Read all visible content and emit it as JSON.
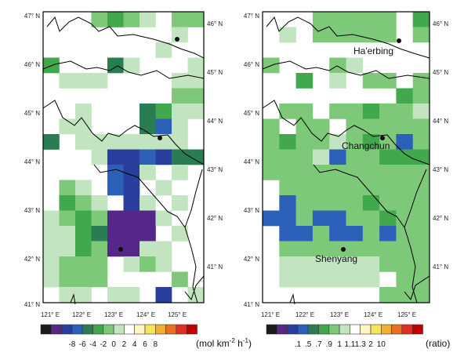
{
  "palette": [
    "#1a1a1a",
    "#542788",
    "#2a3f9d",
    "#2c5fb8",
    "#2a7d52",
    "#41a84e",
    "#7ec87a",
    "#c2e4c0",
    "#ffffff",
    "#fff7c0",
    "#f6e65a",
    "#f0b030",
    "#e87020",
    "#e03020",
    "#c00000"
  ],
  "left_map": {
    "lat_labels": [
      "47° N",
      "46° N",
      "45° N",
      "44° N",
      "43° N",
      "42° N",
      "41° N"
    ],
    "right_labels": [
      "46° N",
      "45° N",
      "44° N",
      "43° N",
      "42° N",
      "41° N"
    ],
    "lon_labels": [
      "121° E",
      "122° E",
      "123° E",
      "124° E",
      "125° E"
    ],
    "cells": [
      {
        "c": 3,
        "r": 0,
        "v": 6
      },
      {
        "c": 4,
        "r": 0,
        "v": 5
      },
      {
        "c": 5,
        "r": 0,
        "v": 6
      },
      {
        "c": 6,
        "r": 0,
        "v": 7
      },
      {
        "c": 8,
        "r": 0,
        "v": 6
      },
      {
        "c": 8,
        "r": 1,
        "v": 7
      },
      {
        "c": 9,
        "r": 0,
        "v": 6
      },
      {
        "c": 7,
        "r": 2,
        "v": 7
      },
      {
        "c": 0,
        "r": 3,
        "v": 5
      },
      {
        "c": 4,
        "r": 3,
        "v": 4
      },
      {
        "c": 5,
        "r": 3,
        "v": 7
      },
      {
        "c": 9,
        "r": 3,
        "v": 7
      },
      {
        "c": 1,
        "r": 4,
        "v": 7
      },
      {
        "c": 2,
        "r": 4,
        "v": 7
      },
      {
        "c": 3,
        "r": 4,
        "v": 7
      },
      {
        "c": 8,
        "r": 4,
        "v": 7
      },
      {
        "c": 9,
        "r": 4,
        "v": 7
      },
      {
        "c": 9,
        "r": 5,
        "v": 6
      },
      {
        "c": 8,
        "r": 5,
        "v": 6
      },
      {
        "c": 2,
        "r": 6,
        "v": 7
      },
      {
        "c": 6,
        "r": 6,
        "v": 4
      },
      {
        "c": 7,
        "r": 6,
        "v": 5
      },
      {
        "c": 9,
        "r": 6,
        "v": 7
      },
      {
        "c": 8,
        "r": 6,
        "v": 7
      },
      {
        "c": 6,
        "r": 7,
        "v": 4
      },
      {
        "c": 7,
        "r": 7,
        "v": 3
      },
      {
        "c": 8,
        "r": 7,
        "v": 7
      },
      {
        "c": 1,
        "r": 7,
        "v": 7
      },
      {
        "c": 2,
        "r": 7,
        "v": 7
      },
      {
        "c": 0,
        "r": 8,
        "v": 4
      },
      {
        "c": 2,
        "r": 8,
        "v": 7
      },
      {
        "c": 3,
        "r": 8,
        "v": 7
      },
      {
        "c": 4,
        "r": 8,
        "v": 7
      },
      {
        "c": 5,
        "r": 8,
        "v": 7
      },
      {
        "c": 6,
        "r": 8,
        "v": 7
      },
      {
        "c": 7,
        "r": 8,
        "v": 7
      },
      {
        "c": 8,
        "r": 8,
        "v": 7
      },
      {
        "c": 3,
        "r": 9,
        "v": 7
      },
      {
        "c": 4,
        "r": 9,
        "v": 2
      },
      {
        "c": 5,
        "r": 9,
        "v": 2
      },
      {
        "c": 6,
        "r": 9,
        "v": 3
      },
      {
        "c": 7,
        "r": 9,
        "v": 2
      },
      {
        "c": 8,
        "r": 9,
        "v": 4
      },
      {
        "c": 9,
        "r": 9,
        "v": 4
      },
      {
        "c": 4,
        "r": 10,
        "v": 3
      },
      {
        "c": 5,
        "r": 10,
        "v": 2
      },
      {
        "c": 6,
        "r": 10,
        "v": 7
      },
      {
        "c": 8,
        "r": 10,
        "v": 7
      },
      {
        "c": 1,
        "r": 11,
        "v": 6
      },
      {
        "c": 2,
        "r": 11,
        "v": 7
      },
      {
        "c": 4,
        "r": 11,
        "v": 3
      },
      {
        "c": 5,
        "r": 11,
        "v": 2
      },
      {
        "c": 7,
        "r": 11,
        "v": 7
      },
      {
        "c": 1,
        "r": 12,
        "v": 5
      },
      {
        "c": 2,
        "r": 12,
        "v": 6
      },
      {
        "c": 3,
        "r": 12,
        "v": 7
      },
      {
        "c": 5,
        "r": 12,
        "v": 2
      },
      {
        "c": 6,
        "r": 12,
        "v": 7
      },
      {
        "c": 8,
        "r": 12,
        "v": 7
      },
      {
        "c": 0,
        "r": 13,
        "v": 7
      },
      {
        "c": 1,
        "r": 13,
        "v": 6
      },
      {
        "c": 2,
        "r": 13,
        "v": 5
      },
      {
        "c": 3,
        "r": 13,
        "v": 6
      },
      {
        "c": 4,
        "r": 13,
        "v": 1
      },
      {
        "c": 5,
        "r": 13,
        "v": 1
      },
      {
        "c": 6,
        "r": 13,
        "v": 1
      },
      {
        "c": 7,
        "r": 13,
        "v": 7
      },
      {
        "c": 0,
        "r": 14,
        "v": 7
      },
      {
        "c": 1,
        "r": 14,
        "v": 7
      },
      {
        "c": 2,
        "r": 14,
        "v": 5
      },
      {
        "c": 3,
        "r": 14,
        "v": 4
      },
      {
        "c": 4,
        "r": 14,
        "v": 1
      },
      {
        "c": 5,
        "r": 14,
        "v": 1
      },
      {
        "c": 6,
        "r": 14,
        "v": 1
      },
      {
        "c": 8,
        "r": 14,
        "v": 7
      },
      {
        "c": 0,
        "r": 15,
        "v": 7
      },
      {
        "c": 1,
        "r": 15,
        "v": 7
      },
      {
        "c": 2,
        "r": 15,
        "v": 5
      },
      {
        "c": 3,
        "r": 15,
        "v": 6
      },
      {
        "c": 4,
        "r": 15,
        "v": 1
      },
      {
        "c": 5,
        "r": 15,
        "v": 1
      },
      {
        "c": 6,
        "r": 15,
        "v": 7
      },
      {
        "c": 7,
        "r": 15,
        "v": 7
      },
      {
        "c": 0,
        "r": 16,
        "v": 7
      },
      {
        "c": 1,
        "r": 16,
        "v": 6
      },
      {
        "c": 2,
        "r": 16,
        "v": 6
      },
      {
        "c": 3,
        "r": 16,
        "v": 6
      },
      {
        "c": 5,
        "r": 16,
        "v": 7
      },
      {
        "c": 6,
        "r": 16,
        "v": 6
      },
      {
        "c": 7,
        "r": 16,
        "v": 7
      },
      {
        "c": 0,
        "r": 17,
        "v": 7
      },
      {
        "c": 1,
        "r": 17,
        "v": 6
      },
      {
        "c": 2,
        "r": 17,
        "v": 6
      },
      {
        "c": 3,
        "r": 17,
        "v": 6
      },
      {
        "c": 8,
        "r": 17,
        "v": 6
      },
      {
        "c": 1,
        "r": 18,
        "v": 7
      },
      {
        "c": 2,
        "r": 18,
        "v": 7
      },
      {
        "c": 4,
        "r": 18,
        "v": 7
      },
      {
        "c": 5,
        "r": 18,
        "v": 7
      },
      {
        "c": 7,
        "r": 18,
        "v": 2
      },
      {
        "c": 9,
        "r": 18,
        "v": 7
      }
    ]
  },
  "right_map": {
    "lat_labels": [
      "47° N",
      "46° N",
      "45° N",
      "44° N",
      "43° N",
      "42° N",
      "41° N"
    ],
    "right_labels": [
      "46° N",
      "45° N",
      "44° N",
      "43° N",
      "42° N",
      "41° N"
    ],
    "lon_labels": [
      "121° E",
      "122° E",
      "123° E",
      "124° E",
      "125° E"
    ],
    "cities": [
      "Ha'erbing",
      "Changchun",
      "Shenyang"
    ],
    "cells": [
      {
        "c": 3,
        "r": 0,
        "v": 6
      },
      {
        "c": 4,
        "r": 0,
        "v": 6
      },
      {
        "c": 5,
        "r": 0,
        "v": 6
      },
      {
        "c": 6,
        "r": 0,
        "v": 6
      },
      {
        "c": 7,
        "r": 0,
        "v": 6
      },
      {
        "c": 9,
        "r": 0,
        "v": 5
      },
      {
        "c": 1,
        "r": 1,
        "v": 7
      },
      {
        "c": 3,
        "r": 1,
        "v": 6
      },
      {
        "c": 4,
        "r": 1,
        "v": 6
      },
      {
        "c": 5,
        "r": 1,
        "v": 6
      },
      {
        "c": 6,
        "r": 1,
        "v": 6
      },
      {
        "c": 7,
        "r": 1,
        "v": 6
      },
      {
        "c": 9,
        "r": 1,
        "v": 6
      },
      {
        "c": 0,
        "r": 3,
        "v": 6
      },
      {
        "c": 4,
        "r": 3,
        "v": 6
      },
      {
        "c": 5,
        "r": 3,
        "v": 7
      },
      {
        "c": 2,
        "r": 4,
        "v": 5
      },
      {
        "c": 4,
        "r": 4,
        "v": 7
      },
      {
        "c": 6,
        "r": 4,
        "v": 6
      },
      {
        "c": 7,
        "r": 4,
        "v": 6
      },
      {
        "c": 9,
        "r": 4,
        "v": 6
      },
      {
        "c": 8,
        "r": 5,
        "v": 5
      },
      {
        "c": 9,
        "r": 5,
        "v": 6
      },
      {
        "c": 1,
        "r": 6,
        "v": 6
      },
      {
        "c": 2,
        "r": 6,
        "v": 6
      },
      {
        "c": 4,
        "r": 6,
        "v": 6
      },
      {
        "c": 5,
        "r": 6,
        "v": 6
      },
      {
        "c": 6,
        "r": 6,
        "v": 5
      },
      {
        "c": 7,
        "r": 6,
        "v": 6
      },
      {
        "c": 8,
        "r": 6,
        "v": 6
      },
      {
        "c": 9,
        "r": 6,
        "v": 7
      },
      {
        "c": 0,
        "r": 7,
        "v": 6
      },
      {
        "c": 2,
        "r": 7,
        "v": 6
      },
      {
        "c": 3,
        "r": 7,
        "v": 6
      },
      {
        "c": 5,
        "r": 7,
        "v": 6
      },
      {
        "c": 6,
        "r": 7,
        "v": 6
      },
      {
        "c": 7,
        "r": 7,
        "v": 6
      },
      {
        "c": 8,
        "r": 7,
        "v": 6
      },
      {
        "c": 9,
        "r": 7,
        "v": 6
      },
      {
        "c": 0,
        "r": 8,
        "v": 6
      },
      {
        "c": 1,
        "r": 8,
        "v": 5
      },
      {
        "c": 2,
        "r": 8,
        "v": 6
      },
      {
        "c": 3,
        "r": 8,
        "v": 6
      },
      {
        "c": 4,
        "r": 8,
        "v": 7
      },
      {
        "c": 5,
        "r": 8,
        "v": 6
      },
      {
        "c": 6,
        "r": 8,
        "v": 5
      },
      {
        "c": 7,
        "r": 8,
        "v": 6
      },
      {
        "c": 8,
        "r": 8,
        "v": 3
      },
      {
        "c": 9,
        "r": 8,
        "v": 6
      },
      {
        "c": 0,
        "r": 9,
        "v": 6
      },
      {
        "c": 1,
        "r": 9,
        "v": 6
      },
      {
        "c": 2,
        "r": 9,
        "v": 6
      },
      {
        "c": 3,
        "r": 9,
        "v": 7
      },
      {
        "c": 4,
        "r": 9,
        "v": 3
      },
      {
        "c": 5,
        "r": 9,
        "v": 6
      },
      {
        "c": 6,
        "r": 9,
        "v": 6
      },
      {
        "c": 7,
        "r": 9,
        "v": 5
      },
      {
        "c": 8,
        "r": 9,
        "v": 5
      },
      {
        "c": 9,
        "r": 9,
        "v": 5
      },
      {
        "c": 0,
        "r": 10,
        "v": 6
      },
      {
        "c": 1,
        "r": 10,
        "v": 6
      },
      {
        "c": 2,
        "r": 10,
        "v": 6
      },
      {
        "c": 3,
        "r": 10,
        "v": 6
      },
      {
        "c": 4,
        "r": 10,
        "v": 6
      },
      {
        "c": 5,
        "r": 10,
        "v": 6
      },
      {
        "c": 6,
        "r": 10,
        "v": 6
      },
      {
        "c": 7,
        "r": 10,
        "v": 6
      },
      {
        "c": 8,
        "r": 10,
        "v": 6
      },
      {
        "c": 9,
        "r": 10,
        "v": 6
      },
      {
        "c": 1,
        "r": 11,
        "v": 6
      },
      {
        "c": 2,
        "r": 11,
        "v": 6
      },
      {
        "c": 3,
        "r": 11,
        "v": 6
      },
      {
        "c": 4,
        "r": 11,
        "v": 6
      },
      {
        "c": 5,
        "r": 11,
        "v": 6
      },
      {
        "c": 6,
        "r": 11,
        "v": 6
      },
      {
        "c": 7,
        "r": 11,
        "v": 6
      },
      {
        "c": 8,
        "r": 11,
        "v": 6
      },
      {
        "c": 9,
        "r": 11,
        "v": 6
      },
      {
        "c": 1,
        "r": 12,
        "v": 3
      },
      {
        "c": 2,
        "r": 12,
        "v": 6
      },
      {
        "c": 3,
        "r": 12,
        "v": 6
      },
      {
        "c": 4,
        "r": 12,
        "v": 6
      },
      {
        "c": 5,
        "r": 12,
        "v": 6
      },
      {
        "c": 6,
        "r": 12,
        "v": 5
      },
      {
        "c": 7,
        "r": 12,
        "v": 6
      },
      {
        "c": 8,
        "r": 12,
        "v": 6
      },
      {
        "c": 9,
        "r": 12,
        "v": 6
      },
      {
        "c": 0,
        "r": 13,
        "v": 3
      },
      {
        "c": 1,
        "r": 13,
        "v": 3
      },
      {
        "c": 2,
        "r": 13,
        "v": 6
      },
      {
        "c": 3,
        "r": 13,
        "v": 3
      },
      {
        "c": 4,
        "r": 13,
        "v": 3
      },
      {
        "c": 5,
        "r": 13,
        "v": 6
      },
      {
        "c": 6,
        "r": 13,
        "v": 6
      },
      {
        "c": 7,
        "r": 13,
        "v": 5
      },
      {
        "c": 8,
        "r": 13,
        "v": 6
      },
      {
        "c": 9,
        "r": 13,
        "v": 6
      },
      {
        "c": 1,
        "r": 14,
        "v": 3
      },
      {
        "c": 2,
        "r": 14,
        "v": 3
      },
      {
        "c": 3,
        "r": 14,
        "v": 6
      },
      {
        "c": 4,
        "r": 14,
        "v": 3
      },
      {
        "c": 5,
        "r": 14,
        "v": 3
      },
      {
        "c": 6,
        "r": 14,
        "v": 6
      },
      {
        "c": 7,
        "r": 14,
        "v": 3
      },
      {
        "c": 8,
        "r": 14,
        "v": 6
      },
      {
        "c": 9,
        "r": 14,
        "v": 6
      },
      {
        "c": 1,
        "r": 15,
        "v": 6
      },
      {
        "c": 2,
        "r": 15,
        "v": 6
      },
      {
        "c": 3,
        "r": 15,
        "v": 6
      },
      {
        "c": 4,
        "r": 15,
        "v": 6
      },
      {
        "c": 5,
        "r": 15,
        "v": 6
      },
      {
        "c": 6,
        "r": 15,
        "v": 6
      },
      {
        "c": 7,
        "r": 15,
        "v": 6
      },
      {
        "c": 8,
        "r": 15,
        "v": 6
      },
      {
        "c": 9,
        "r": 15,
        "v": 6
      },
      {
        "c": 1,
        "r": 16,
        "v": 7
      },
      {
        "c": 2,
        "r": 16,
        "v": 7
      },
      {
        "c": 3,
        "r": 16,
        "v": 7
      },
      {
        "c": 4,
        "r": 16,
        "v": 7
      },
      {
        "c": 5,
        "r": 16,
        "v": 7
      },
      {
        "c": 6,
        "r": 16,
        "v": 7
      },
      {
        "c": 7,
        "r": 16,
        "v": 6
      },
      {
        "c": 8,
        "r": 16,
        "v": 6
      },
      {
        "c": 9,
        "r": 16,
        "v": 6
      },
      {
        "c": 1,
        "r": 17,
        "v": 7
      },
      {
        "c": 2,
        "r": 17,
        "v": 7
      },
      {
        "c": 3,
        "r": 17,
        "v": 7
      },
      {
        "c": 4,
        "r": 17,
        "v": 7
      },
      {
        "c": 5,
        "r": 17,
        "v": 7
      },
      {
        "c": 6,
        "r": 17,
        "v": 7
      },
      {
        "c": 8,
        "r": 17,
        "v": 6
      },
      {
        "c": 9,
        "r": 17,
        "v": 6
      },
      {
        "c": 7,
        "r": 18,
        "v": 6
      },
      {
        "c": 8,
        "r": 18,
        "v": 6
      },
      {
        "c": 9,
        "r": 18,
        "v": 6
      }
    ]
  },
  "colorbar_left": {
    "labels": [
      "-8",
      "-6",
      "-4",
      "-2",
      "0",
      "2",
      "4",
      "6",
      "8"
    ],
    "unit_prefix": "(mol km",
    "unit_exp1": "-2",
    "unit_mid": " h",
    "unit_exp2": "-1",
    "unit_suffix": ")"
  },
  "colorbar_right": {
    "labels": [
      ".1",
      ".5",
      ".7",
      ".9",
      "1",
      "1.1",
      "1.3",
      "2",
      "10"
    ],
    "unit": "(ratio)"
  }
}
